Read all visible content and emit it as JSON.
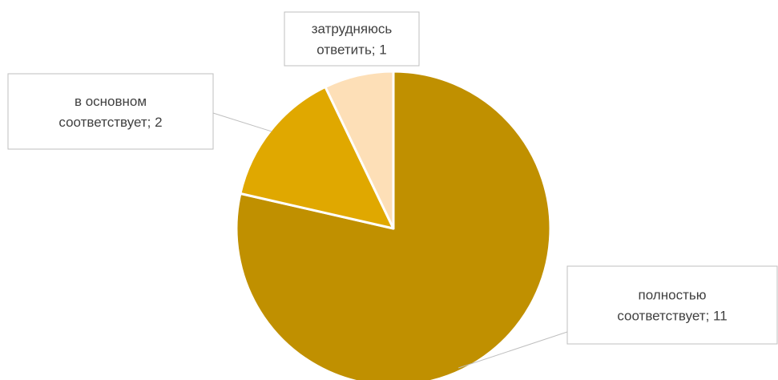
{
  "chart_data": {
    "type": "pie",
    "title": "",
    "start_angle_deg": 0,
    "direction": "clockwise",
    "slices": [
      {
        "label_lines": [
          "полностью",
          "соответствует; 11"
        ],
        "category": "полностью соответствует",
        "value": 11,
        "color": "#C09000"
      },
      {
        "label_lines": [
          "в основном",
          "соответствует; 2"
        ],
        "category": "в основном соответствует",
        "value": 2,
        "color": "#E0A800"
      },
      {
        "label_lines": [
          "затрудняюсь",
          "ответить; 1"
        ],
        "category": "затрудняюсь ответить",
        "value": 1,
        "color": "#FDDFB7"
      }
    ],
    "legend": "none",
    "label_style": "callout boxes with leader lines"
  }
}
